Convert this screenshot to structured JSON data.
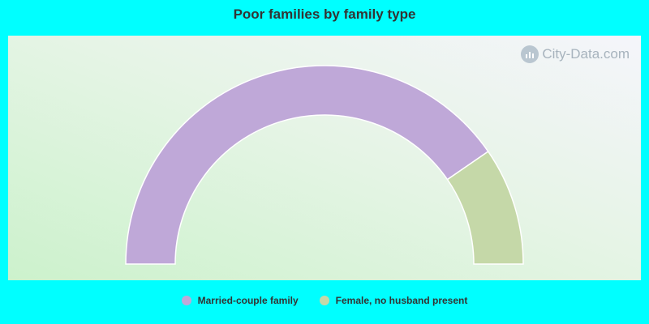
{
  "chart_data": {
    "type": "pie",
    "subtype": "half-donut",
    "title": "Poor families by family type",
    "categories": [
      "Married-couple family",
      "Female, no husband present"
    ],
    "values": [
      80.8,
      19.2
    ],
    "colors": [
      "#bfa8d8",
      "#c5d8a8"
    ],
    "legend_position": "bottom-center"
  },
  "watermark": {
    "text": "City-Data.com"
  }
}
